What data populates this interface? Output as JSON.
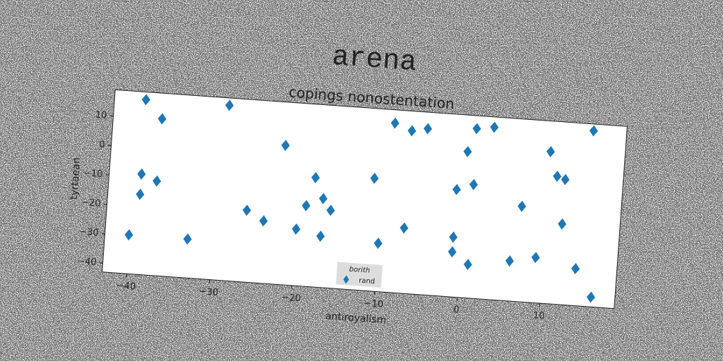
{
  "chart_data": {
    "type": "scatter",
    "title": "arena",
    "subtitle": "copings nonostentation",
    "x_label": "antiroyalism",
    "y_label": "tyrtaean",
    "xlim": [
      -43,
      19
    ],
    "ylim": [
      -43,
      19
    ],
    "xticks": [
      {
        "value": -40,
        "label": "−40"
      },
      {
        "value": -30,
        "label": "−30"
      },
      {
        "value": -20,
        "label": "−20"
      },
      {
        "value": -10,
        "label": "−10"
      },
      0,
      10
    ],
    "yticks": [
      {
        "value": -40,
        "label": "−40"
      },
      {
        "value": -30,
        "label": "−30"
      },
      {
        "value": -20,
        "label": "−20"
      },
      {
        "value": -10,
        "label": "−10"
      },
      0,
      10
    ],
    "legend_title": "borith",
    "legend": "lower center",
    "series": [
      {
        "name": "rand",
        "color": "#1f77b4",
        "x": [
          -39.2,
          -37.1,
          -29.1,
          -39.1,
          -39.1,
          -37.2,
          -40.1,
          -33.0,
          -26.1,
          -24.0,
          -22.0,
          -20.0,
          -19.0,
          -18.1,
          -17.0,
          -16.0,
          -17.0,
          -11.0,
          -10.0,
          -9.0,
          -6.9,
          -5.0,
          -7.0,
          -1.0,
          -1.0,
          -1.0,
          0.0,
          1.0,
          0.9,
          1.0,
          3.0,
          6.0,
          7.0,
          9.1,
          10.0,
          11.0,
          12.0,
          12.0,
          14.0,
          15.0,
          16.1
        ],
        "values": [
          16.4,
          10.3,
          16.5,
          -8.9,
          -15.8,
          -10.9,
          -29.8,
          -29.8,
          -18.6,
          -21.8,
          4.3,
          -23.8,
          -15.6,
          -5.9,
          -12.8,
          -16.6,
          -25.6,
          -4.7,
          -26.6,
          14.5,
          12.3,
          13.4,
          -20.8,
          -6.5,
          -22.7,
          -27.7,
          6.6,
          -4.4,
          14.6,
          -31.6,
          15.5,
          -29.4,
          -10.6,
          -27.6,
          8.6,
          0.4,
          -0.5,
          -15.6,
          -30.4,
          16.7,
          -39.7
        ]
      }
    ]
  }
}
